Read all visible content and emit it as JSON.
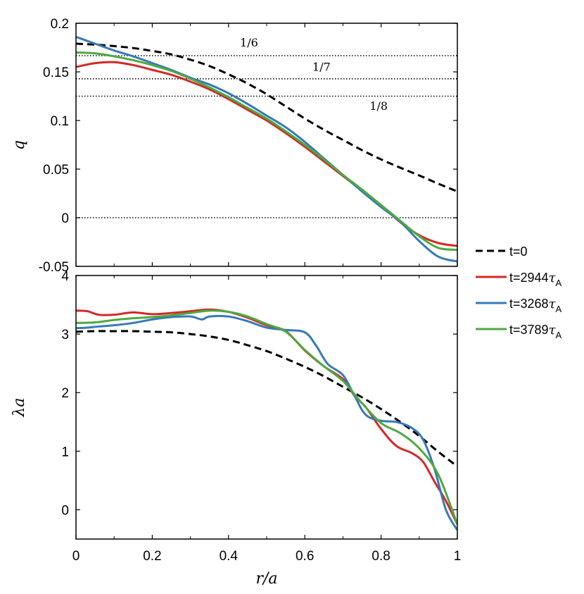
{
  "chart_data": [
    {
      "type": "line",
      "panel": "top",
      "ylabel": "q",
      "xlabel": "",
      "xlim": [
        0,
        1
      ],
      "ylim": [
        -0.05,
        0.2
      ],
      "xticks": [
        "0",
        "0.2",
        "0.4",
        "0.6",
        "0.8",
        "1"
      ],
      "yticks": [
        {
          "v": 0.2,
          "label": "0.2"
        },
        {
          "v": 0.15,
          "label": "0.15"
        },
        {
          "v": 0.1,
          "label": "0.1"
        },
        {
          "v": 0.05,
          "label": "0.05"
        },
        {
          "v": 0,
          "label": "0"
        },
        {
          "v": -0.05,
          "label": "-0.05"
        }
      ],
      "reference_lines": [
        {
          "y": 0.16667,
          "label": "1/6",
          "label_x": 0.43,
          "label_y": 0.176
        },
        {
          "y": 0.14286,
          "label": "1/7",
          "label_x": 0.62,
          "label_y": 0.151
        },
        {
          "y": 0.125,
          "label": "1/8",
          "label_x": 0.77,
          "label_y": 0.111
        },
        {
          "y": 0.0,
          "label": ""
        }
      ],
      "series": [
        {
          "name": "t=0",
          "x": [
            0,
            0.05,
            0.1,
            0.15,
            0.2,
            0.25,
            0.3,
            0.35,
            0.4,
            0.45,
            0.5,
            0.55,
            0.6,
            0.65,
            0.7,
            0.75,
            0.8,
            0.85,
            0.9,
            0.95,
            1.0
          ],
          "y": [
            0.179,
            0.178,
            0.1765,
            0.1745,
            0.1715,
            0.168,
            0.1625,
            0.156,
            0.1475,
            0.138,
            0.127,
            0.1145,
            0.102,
            0.0905,
            0.08,
            0.0695,
            0.06,
            0.0515,
            0.0435,
            0.035,
            0.027
          ]
        },
        {
          "name": "t=2944",
          "x": [
            0,
            0.05,
            0.1,
            0.15,
            0.2,
            0.25,
            0.3,
            0.35,
            0.4,
            0.45,
            0.5,
            0.55,
            0.6,
            0.65,
            0.7,
            0.75,
            0.8,
            0.85,
            0.9,
            0.95,
            1.0
          ],
          "y": [
            0.155,
            0.159,
            0.16,
            0.157,
            0.152,
            0.147,
            0.14,
            0.132,
            0.122,
            0.111,
            0.1,
            0.087,
            0.073,
            0.058,
            0.043,
            0.028,
            0.013,
            -0.0045,
            -0.018,
            -0.026,
            -0.029
          ]
        },
        {
          "name": "t=3268",
          "x": [
            0,
            0.05,
            0.1,
            0.15,
            0.2,
            0.25,
            0.3,
            0.35,
            0.4,
            0.45,
            0.5,
            0.55,
            0.6,
            0.65,
            0.7,
            0.75,
            0.8,
            0.85,
            0.9,
            0.95,
            1.0
          ],
          "y": [
            0.186,
            0.179,
            0.172,
            0.166,
            0.159,
            0.152,
            0.144,
            0.137,
            0.128,
            0.117,
            0.105,
            0.093,
            0.078,
            0.061,
            0.044,
            0.027,
            0.011,
            -0.004,
            -0.024,
            -0.04,
            -0.045
          ]
        },
        {
          "name": "t=3789",
          "x": [
            0,
            0.05,
            0.1,
            0.15,
            0.2,
            0.25,
            0.3,
            0.35,
            0.4,
            0.45,
            0.5,
            0.55,
            0.6,
            0.65,
            0.7,
            0.75,
            0.8,
            0.85,
            0.9,
            0.95,
            1.0
          ],
          "y": [
            0.17,
            0.169,
            0.166,
            0.162,
            0.157,
            0.151,
            0.143,
            0.134,
            0.124,
            0.113,
            0.102,
            0.089,
            0.075,
            0.06,
            0.044,
            0.029,
            0.013,
            -0.003,
            -0.019,
            -0.031,
            -0.033
          ]
        }
      ]
    },
    {
      "type": "line",
      "panel": "bottom",
      "ylabel": "λa",
      "xlabel": "r/a",
      "xlim": [
        0,
        1
      ],
      "ylim": [
        -0.5,
        4
      ],
      "xticks": [
        "0",
        "0.2",
        "0.4",
        "0.6",
        "0.8",
        "1"
      ],
      "yticks": [
        {
          "v": 4,
          "label": "4"
        },
        {
          "v": 3,
          "label": "3"
        },
        {
          "v": 2,
          "label": "2"
        },
        {
          "v": 1,
          "label": "1"
        },
        {
          "v": 0,
          "label": "0"
        }
      ],
      "series": [
        {
          "name": "t=0",
          "x": [
            0,
            0.05,
            0.1,
            0.15,
            0.2,
            0.25,
            0.3,
            0.35,
            0.4,
            0.45,
            0.5,
            0.55,
            0.6,
            0.65,
            0.7,
            0.75,
            0.8,
            0.85,
            0.9,
            0.95,
            1.0
          ],
          "y": [
            3.04,
            3.05,
            3.05,
            3.05,
            3.04,
            3.03,
            3.0,
            2.96,
            2.9,
            2.81,
            2.71,
            2.58,
            2.44,
            2.28,
            2.1,
            1.92,
            1.72,
            1.5,
            1.26,
            0.99,
            0.74
          ]
        },
        {
          "name": "t=2944",
          "x": [
            0,
            0.03,
            0.06,
            0.1,
            0.15,
            0.2,
            0.25,
            0.3,
            0.35,
            0.4,
            0.45,
            0.5,
            0.55,
            0.6,
            0.65,
            0.7,
            0.73,
            0.76,
            0.8,
            0.84,
            0.88,
            0.91,
            0.94,
            0.97,
            1.0
          ],
          "y": [
            3.4,
            3.39,
            3.33,
            3.33,
            3.37,
            3.34,
            3.36,
            3.39,
            3.42,
            3.38,
            3.28,
            3.15,
            3.05,
            2.72,
            2.45,
            2.23,
            1.95,
            1.75,
            1.38,
            1.09,
            0.97,
            0.82,
            0.48,
            0.15,
            -0.25
          ]
        },
        {
          "name": "t=3268",
          "x": [
            0,
            0.03,
            0.06,
            0.1,
            0.15,
            0.2,
            0.25,
            0.3,
            0.33,
            0.35,
            0.4,
            0.45,
            0.5,
            0.55,
            0.6,
            0.63,
            0.66,
            0.7,
            0.73,
            0.76,
            0.8,
            0.84,
            0.88,
            0.91,
            0.94,
            0.97,
            1.0
          ],
          "y": [
            3.1,
            3.11,
            3.13,
            3.15,
            3.19,
            3.25,
            3.29,
            3.3,
            3.25,
            3.3,
            3.3,
            3.22,
            3.11,
            3.07,
            3.03,
            2.8,
            2.49,
            2.3,
            1.95,
            1.62,
            1.52,
            1.5,
            1.4,
            1.2,
            0.7,
            0.0,
            -0.35
          ]
        },
        {
          "name": "t=3789",
          "x": [
            0,
            0.05,
            0.1,
            0.15,
            0.2,
            0.25,
            0.3,
            0.35,
            0.4,
            0.45,
            0.5,
            0.55,
            0.6,
            0.65,
            0.7,
            0.75,
            0.8,
            0.85,
            0.9,
            0.95,
            1.0
          ],
          "y": [
            3.19,
            3.2,
            3.24,
            3.27,
            3.29,
            3.32,
            3.36,
            3.4,
            3.38,
            3.3,
            3.17,
            3.04,
            2.73,
            2.45,
            2.2,
            1.82,
            1.48,
            1.31,
            1.05,
            0.6,
            -0.25
          ]
        }
      ]
    }
  ],
  "legend": {
    "entries": [
      {
        "label": "t=0",
        "tau": false,
        "color": "#000000",
        "dash": true
      },
      {
        "label": "t=2944",
        "tau": true,
        "color": "#d62728",
        "dash": false
      },
      {
        "label": "t=3268",
        "tau": true,
        "color": "#3779b8",
        "dash": false
      },
      {
        "label": "t=3789",
        "tau": true,
        "color": "#4daa3f",
        "dash": false
      }
    ],
    "tau_symbol": "τ",
    "tau_subscript": "A",
    "placement": "right"
  },
  "colors": {
    "t=0": "#000000",
    "t=2944": "#d62728",
    "t=3268": "#3779b8",
    "t=3789": "#4daa3f"
  }
}
